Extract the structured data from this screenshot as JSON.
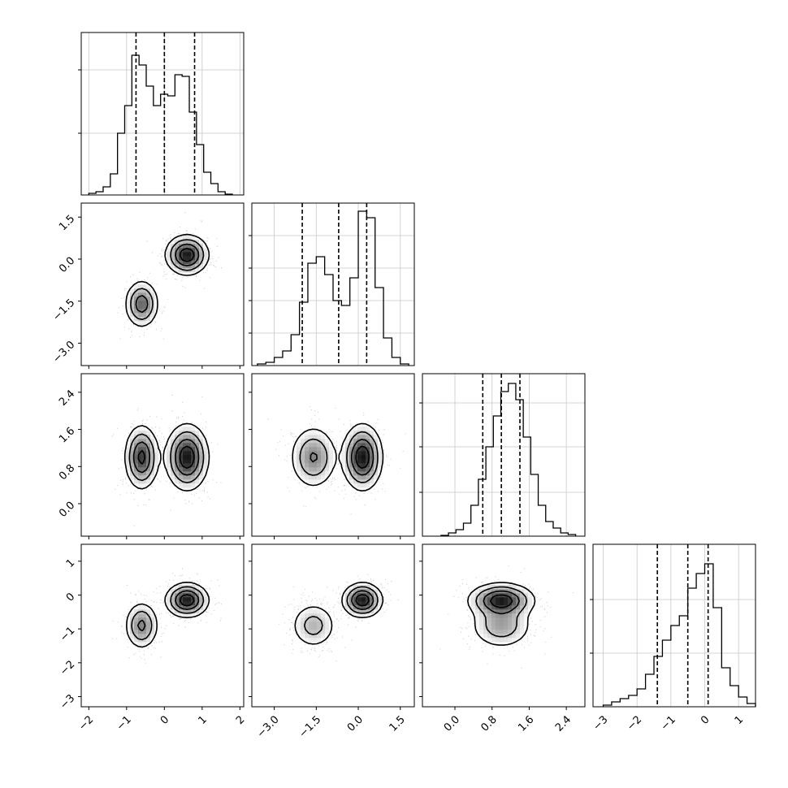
{
  "chart_data": {
    "type": "corner",
    "n_params": 4,
    "grid": true,
    "colors": {
      "hist": "#000000",
      "contour": "#000000",
      "points": "#9a9a9a",
      "grid": "#c8c8c8",
      "density": "#000000"
    },
    "params": [
      {
        "range": [
          -2.2,
          2.1
        ],
        "ticks": [
          -2,
          -1,
          0,
          1,
          2
        ],
        "tick_labels": [
          "−2",
          "−1",
          "0",
          "1",
          "2"
        ],
        "quantiles": [
          -0.75,
          0.0,
          0.8
        ],
        "hist_edges": [
          -2.0,
          1.8
        ],
        "hist_values": [
          0.01,
          0.02,
          0.05,
          0.13,
          0.38,
          0.55,
          0.86,
          0.8,
          0.67,
          0.55,
          0.62,
          0.61,
          0.74,
          0.73,
          0.51,
          0.31,
          0.14,
          0.07,
          0.02,
          0.005
        ]
      },
      {
        "range": [
          -3.8,
          2.0
        ],
        "ticks": [
          -3.0,
          -1.5,
          0.0,
          1.5
        ],
        "tick_labels": [
          "−3.0",
          "−1.5",
          "0.0",
          "1.5"
        ],
        "quantiles": [
          -2.0,
          -0.7,
          0.3
        ],
        "hist_edges": [
          -3.6,
          1.8
        ],
        "hist_values": [
          0.01,
          0.02,
          0.05,
          0.09,
          0.19,
          0.39,
          0.63,
          0.67,
          0.56,
          0.4,
          0.37,
          0.54,
          0.95,
          0.91,
          0.48,
          0.17,
          0.05,
          0.01
        ]
      },
      {
        "range": [
          -0.7,
          2.8
        ],
        "ticks": [
          0.0,
          0.8,
          1.6,
          2.4
        ],
        "tick_labels": [
          "0.0",
          "0.8",
          "1.6",
          "2.4"
        ],
        "quantiles": [
          0.6,
          1.0,
          1.4
        ],
        "hist_edges": [
          -0.3,
          2.6
        ],
        "hist_values": [
          0.005,
          0.02,
          0.04,
          0.08,
          0.19,
          0.35,
          0.55,
          0.74,
          0.89,
          0.94,
          0.84,
          0.61,
          0.38,
          0.19,
          0.09,
          0.05,
          0.02,
          0.01
        ]
      },
      {
        "range": [
          -3.3,
          1.5
        ],
        "ticks": [
          -3,
          -2,
          -1,
          0,
          1
        ],
        "tick_labels": [
          "−3",
          "−2",
          "−1",
          "0",
          "1"
        ],
        "quantiles": [
          -1.4,
          -0.5,
          0.1
        ],
        "hist_edges": [
          -3.0,
          1.5
        ],
        "hist_values": [
          0.01,
          0.03,
          0.05,
          0.07,
          0.11,
          0.2,
          0.31,
          0.41,
          0.5,
          0.56,
          0.73,
          0.82,
          0.88,
          0.61,
          0.24,
          0.13,
          0.06,
          0.02
        ]
      }
    ],
    "hist_ticks": [
      {
        "frac": [
          0.38,
          0.77
        ]
      },
      {
        "frac": [
          0.2,
          0.4,
          0.6,
          0.8
        ]
      },
      {
        "frac": [
          0.27,
          0.55,
          0.82
        ]
      },
      {
        "frac": [
          0.33,
          0.66
        ]
      }
    ],
    "components": [
      {
        "weight": 0.4,
        "mean": [
          -0.6,
          -1.6,
          1.0,
          -0.9
        ],
        "sd": [
          0.22,
          0.42,
          0.34,
          0.35
        ]
      },
      {
        "weight": 0.6,
        "mean": [
          0.6,
          0.15,
          1.0,
          -0.15
        ],
        "sd": [
          0.28,
          0.35,
          0.35,
          0.25
        ]
      }
    ],
    "samples_shown_per_panel": 700
  }
}
